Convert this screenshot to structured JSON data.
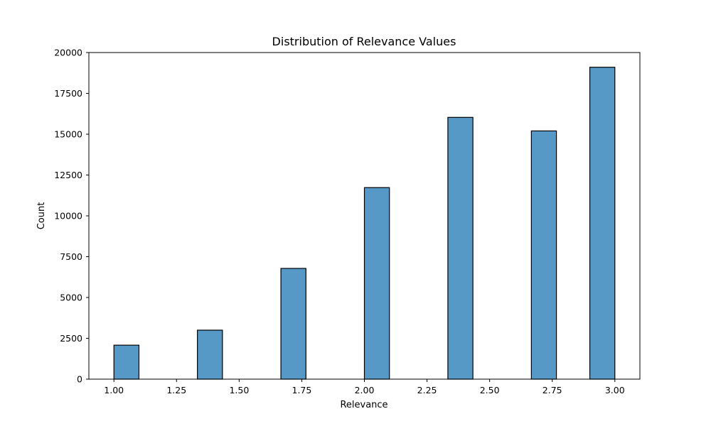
{
  "chart_data": {
    "type": "bar",
    "title": "Distribution of Relevance Values",
    "xlabel": "Relevance",
    "ylabel": "Count",
    "xlim": [
      0.9,
      3.1
    ],
    "ylim": [
      0,
      20000
    ],
    "xticks": [
      "1.00",
      "1.25",
      "1.50",
      "1.75",
      "2.00",
      "2.25",
      "2.50",
      "2.75",
      "3.00"
    ],
    "yticks": [
      "0",
      "2500",
      "5000",
      "7500",
      "10000",
      "12500",
      "15000",
      "17500",
      "20000"
    ],
    "grid": false,
    "bar_color": "#5699c6",
    "edge_color": "#000000",
    "bins": [
      {
        "x0": 1.0,
        "x1": 1.1,
        "value": 2080
      },
      {
        "x0": 1.3333,
        "x1": 1.4333,
        "value": 3000
      },
      {
        "x0": 1.6667,
        "x1": 1.7667,
        "value": 6780
      },
      {
        "x0": 2.0,
        "x1": 2.1,
        "value": 11730
      },
      {
        "x0": 2.3333,
        "x1": 2.4333,
        "value": 16030
      },
      {
        "x0": 2.6667,
        "x1": 2.7667,
        "value": 15200
      },
      {
        "x0": 2.9,
        "x1": 3.0,
        "value": 19100
      }
    ]
  }
}
